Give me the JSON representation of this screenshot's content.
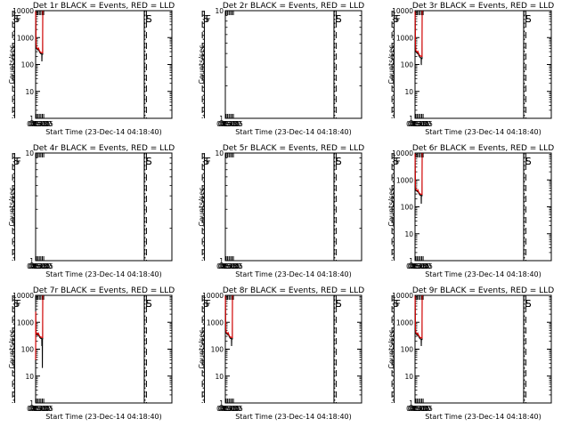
{
  "colors": {
    "background": "#ffffff",
    "axes": "#000000",
    "events": "#000000",
    "lld": "#e00000"
  },
  "chart_data": [
    {
      "type": "line",
      "title": "Det 1r BLACK = Events, RED = LLD",
      "xlabel": "Start Time (23-Dec-14 04:18:40)",
      "ylabel": "Counts/sec",
      "xlim": [
        "04:21",
        "03:55"
      ],
      "xticks": [
        "04:30",
        "04:45",
        "05:00",
        "05:15",
        "05:30",
        "05:45"
      ],
      "ylim": [
        1,
        10000
      ],
      "ylog": true,
      "yticks": [
        "1",
        "10",
        "100",
        "1000",
        "10000"
      ],
      "markers": [
        "S",
        "F",
        "E",
        "S"
      ],
      "series": [
        {
          "name": "Events",
          "color": "#000000",
          "x": [
            "04:21",
            "04:23",
            "04:25",
            "04:30",
            "04:40",
            "04:45",
            "04:50",
            "04:55",
            "05:00",
            "05:05",
            "05:10",
            "05:15",
            "05:20",
            "05:25",
            "05:26",
            "05:27",
            "05:30",
            "05:33",
            "05:34",
            "05:35",
            "05:36"
          ],
          "y": [
            9000,
            3000,
            600,
            400,
            360,
            350,
            380,
            340,
            300,
            280,
            260,
            250,
            250,
            240,
            130,
            240,
            240,
            240,
            230,
            9000,
            10000
          ]
        },
        {
          "name": "LLD",
          "color": "#e00000",
          "x": [
            "04:21",
            "04:23",
            "04:25",
            "04:30",
            "04:40",
            "04:45",
            "04:50",
            "04:55",
            "05:00",
            "05:05",
            "05:10",
            "05:15",
            "05:20",
            "05:25",
            "05:30",
            "05:33",
            "05:34",
            "05:35",
            "05:36"
          ],
          "y": [
            9500,
            3200,
            650,
            430,
            390,
            380,
            410,
            370,
            330,
            310,
            290,
            280,
            280,
            270,
            270,
            270,
            260,
            9500,
            10000
          ]
        }
      ]
    },
    {
      "type": "line",
      "title": "Det 2r BLACK = Events, RED = LLD",
      "xlabel": "Start Time (23-Dec-14 04:18:40)",
      "ylabel": "Counts/sec",
      "xlim": [
        "04:21",
        "03:55"
      ],
      "xticks": [
        "04:30",
        "04:45",
        "05:00",
        "05:15",
        "05:30",
        "05:45"
      ],
      "ylim": [
        1,
        10
      ],
      "ylog": true,
      "yticks": [
        "1",
        "10"
      ],
      "markers": [
        "S",
        "F",
        "E",
        "S"
      ],
      "series": []
    },
    {
      "type": "line",
      "title": "Det 3r BLACK = Events, RED = LLD",
      "xlabel": "Start Time (23-Dec-14 04:18:40)",
      "ylabel": "Counts/sec",
      "xlim": [
        "04:21",
        "03:55"
      ],
      "xticks": [
        "04:30",
        "04:45",
        "05:00",
        "05:15",
        "05:30",
        "05:45"
      ],
      "ylim": [
        1,
        10000
      ],
      "ylog": true,
      "yticks": [
        "1",
        "10",
        "100",
        "1000",
        "10000"
      ],
      "markers": [
        "S",
        "F",
        "E",
        "S"
      ],
      "series": [
        {
          "name": "Events",
          "color": "#000000",
          "x": [
            "04:21",
            "04:23",
            "04:25",
            "04:30",
            "04:40",
            "04:45",
            "04:50",
            "04:55",
            "05:00",
            "05:05",
            "05:10",
            "05:15",
            "05:20",
            "05:25",
            "05:26",
            "05:27",
            "05:30",
            "05:33",
            "05:34",
            "05:35",
            "05:36"
          ],
          "y": [
            9000,
            3000,
            600,
            300,
            270,
            260,
            280,
            250,
            220,
            200,
            190,
            180,
            180,
            170,
            95,
            170,
            170,
            170,
            160,
            9000,
            10000
          ]
        },
        {
          "name": "LLD",
          "color": "#e00000",
          "x": [
            "04:21",
            "04:23",
            "04:25",
            "04:30",
            "04:40",
            "04:45",
            "04:50",
            "04:55",
            "05:00",
            "05:05",
            "05:10",
            "05:15",
            "05:20",
            "05:25",
            "05:30",
            "05:33",
            "05:34",
            "05:35",
            "05:36"
          ],
          "y": [
            9500,
            3200,
            650,
            330,
            300,
            290,
            310,
            280,
            250,
            230,
            220,
            210,
            210,
            200,
            200,
            200,
            190,
            9500,
            10000
          ]
        }
      ]
    },
    {
      "type": "line",
      "title": "Det 4r BLACK = Events, RED = LLD",
      "xlabel": "Start Time (23-Dec-14 04:18:40)",
      "ylabel": "Counts/sec",
      "xlim": [
        "04:21",
        "03:55"
      ],
      "xticks": [
        "04:30",
        "04:45",
        "05:00",
        "05:15",
        "05:30",
        "05:45"
      ],
      "ylim": [
        1,
        10
      ],
      "ylog": true,
      "yticks": [
        "1",
        "10"
      ],
      "markers": [
        "S",
        "F",
        "E",
        "S"
      ],
      "series": []
    },
    {
      "type": "line",
      "title": "Det 5r BLACK = Events, RED = LLD",
      "xlabel": "Start Time (23-Dec-14 04:18:40)",
      "ylabel": "Counts/sec",
      "xlim": [
        "04:21",
        "03:55"
      ],
      "xticks": [
        "04:30",
        "04:45",
        "05:00",
        "05:15",
        "05:30",
        "05:45"
      ],
      "ylim": [
        1,
        10
      ],
      "ylog": true,
      "yticks": [
        "1",
        "10"
      ],
      "markers": [
        "S",
        "F",
        "E",
        "S"
      ],
      "series": []
    },
    {
      "type": "line",
      "title": "Det 6r BLACK = Events, RED = LLD",
      "xlabel": "Start Time (23-Dec-14 04:18:40)",
      "ylabel": "Counts/sec",
      "xlim": [
        "04:21",
        "03:55"
      ],
      "xticks": [
        "04:30",
        "04:45",
        "05:00",
        "05:15",
        "05:30",
        "05:45"
      ],
      "ylim": [
        1,
        10000
      ],
      "ylog": true,
      "yticks": [
        "1",
        "10",
        "100",
        "1000",
        "10000"
      ],
      "markers": [
        "S",
        "F",
        "E",
        "S"
      ],
      "series": [
        {
          "name": "Events",
          "color": "#000000",
          "x": [
            "04:21",
            "04:23",
            "04:25",
            "04:30",
            "04:40",
            "04:45",
            "04:50",
            "04:55",
            "05:00",
            "05:05",
            "05:10",
            "05:15",
            "05:20",
            "05:25",
            "05:26",
            "05:27",
            "05:30",
            "05:33",
            "05:34",
            "05:35",
            "05:36"
          ],
          "y": [
            9000,
            2000,
            600,
            420,
            380,
            370,
            400,
            360,
            320,
            300,
            280,
            270,
            270,
            260,
            130,
            260,
            260,
            260,
            250,
            9000,
            10000
          ]
        },
        {
          "name": "LLD",
          "color": "#e00000",
          "x": [
            "04:21",
            "04:23",
            "04:25",
            "04:30",
            "04:40",
            "04:45",
            "04:50",
            "04:55",
            "05:00",
            "05:05",
            "05:10",
            "05:15",
            "05:20",
            "05:25",
            "05:30",
            "05:33",
            "05:34",
            "05:35",
            "05:36"
          ],
          "y": [
            9500,
            2200,
            650,
            450,
            410,
            400,
            430,
            390,
            350,
            330,
            310,
            300,
            300,
            290,
            290,
            290,
            280,
            9500,
            10000
          ]
        }
      ]
    },
    {
      "type": "line",
      "title": "Det 7r BLACK = Events, RED = LLD",
      "xlabel": "Start Time (23-Dec-14 04:18:40)",
      "ylabel": "Counts/sec",
      "xlim": [
        "04:21",
        "03:55"
      ],
      "xticks": [
        "04:30",
        "04:45",
        "05:00",
        "05:15",
        "05:30",
        "05:45"
      ],
      "ylim": [
        1,
        10000
      ],
      "ylog": true,
      "yticks": [
        "1",
        "10",
        "100",
        "1000",
        "10000"
      ],
      "markers": [
        "S",
        "F",
        "E",
        "S"
      ],
      "series": [
        {
          "name": "Events",
          "color": "#000000",
          "x": [
            "04:21",
            "04:22",
            "04:23",
            "04:25",
            "04:30",
            "04:40",
            "04:45",
            "04:50",
            "04:55",
            "05:00",
            "05:05",
            "05:10",
            "05:15",
            "05:20",
            "05:25",
            "05:26",
            "05:27",
            "05:30",
            "05:31",
            "05:32",
            "05:33",
            "05:34",
            "05:35",
            "05:36"
          ],
          "y": [
            30,
            2000,
            500,
            400,
            350,
            340,
            330,
            360,
            320,
            290,
            270,
            260,
            250,
            250,
            240,
            130,
            240,
            240,
            20,
            240,
            240,
            230,
            9000,
            10000
          ]
        },
        {
          "name": "LLD",
          "color": "#e00000",
          "x": [
            "04:21",
            "04:22",
            "04:23",
            "04:25",
            "04:30",
            "04:40",
            "04:45",
            "04:50",
            "04:55",
            "05:00",
            "05:05",
            "05:10",
            "05:15",
            "05:20",
            "05:25",
            "05:30",
            "05:33",
            "05:34",
            "05:35",
            "05:36"
          ],
          "y": [
            40,
            2500,
            550,
            430,
            380,
            370,
            360,
            390,
            350,
            320,
            300,
            290,
            280,
            280,
            270,
            270,
            270,
            260,
            9500,
            10000
          ]
        }
      ]
    },
    {
      "type": "line",
      "title": "Det 8r BLACK = Events, RED = LLD",
      "xlabel": "Start Time (23-Dec-14 04:18:40)",
      "ylabel": "Counts/sec",
      "xlim": [
        "04:21",
        "03:55"
      ],
      "xticks": [
        "04:30",
        "04:45",
        "05:00",
        "05:15",
        "05:30",
        "05:45"
      ],
      "ylim": [
        1,
        10000
      ],
      "ylog": true,
      "yticks": [
        "1",
        "10",
        "100",
        "1000",
        "10000"
      ],
      "markers": [
        "S",
        "F",
        "E",
        "S"
      ],
      "series": [
        {
          "name": "Events",
          "color": "#000000",
          "x": [
            "04:21",
            "04:23",
            "04:25",
            "04:30",
            "04:40",
            "04:45",
            "04:50",
            "04:55",
            "05:00",
            "05:05",
            "05:10",
            "05:15",
            "05:20",
            "05:25",
            "05:26",
            "05:27",
            "05:30",
            "05:33",
            "05:34",
            "05:35",
            "05:36"
          ],
          "y": [
            9000,
            2500,
            600,
            400,
            360,
            350,
            380,
            340,
            300,
            280,
            260,
            250,
            250,
            240,
            130,
            240,
            240,
            240,
            230,
            9000,
            10000
          ]
        },
        {
          "name": "LLD",
          "color": "#e00000",
          "x": [
            "04:21",
            "04:23",
            "04:25",
            "04:30",
            "04:40",
            "04:45",
            "04:50",
            "04:55",
            "05:00",
            "05:05",
            "05:10",
            "05:15",
            "05:20",
            "05:25",
            "05:30",
            "05:33",
            "05:34",
            "05:35",
            "05:36"
          ],
          "y": [
            9500,
            2700,
            650,
            430,
            390,
            380,
            410,
            370,
            330,
            310,
            290,
            280,
            280,
            270,
            270,
            270,
            260,
            9500,
            10000
          ]
        }
      ]
    },
    {
      "type": "line",
      "title": "Det 9r BLACK = Events, RED = LLD",
      "xlabel": "Start Time (23-Dec-14 04:18:40)",
      "ylabel": "Counts/sec",
      "xlim": [
        "04:21",
        "03:55"
      ],
      "xticks": [
        "04:30",
        "04:45",
        "05:00",
        "05:15",
        "05:30",
        "05:45"
      ],
      "ylim": [
        1,
        10000
      ],
      "ylog": true,
      "yticks": [
        "1",
        "10",
        "100",
        "1000",
        "10000"
      ],
      "markers": [
        "S",
        "F",
        "E",
        "S"
      ],
      "series": [
        {
          "name": "Events",
          "color": "#000000",
          "x": [
            "04:21",
            "04:23",
            "04:25",
            "04:30",
            "04:40",
            "04:45",
            "04:50",
            "04:55",
            "05:00",
            "05:05",
            "05:10",
            "05:15",
            "05:20",
            "05:25",
            "05:26",
            "05:27",
            "05:30",
            "05:33",
            "05:34",
            "05:35",
            "05:36"
          ],
          "y": [
            9000,
            3000,
            600,
            380,
            340,
            330,
            360,
            320,
            290,
            270,
            250,
            240,
            240,
            230,
            130,
            230,
            230,
            230,
            220,
            9000,
            10000
          ]
        },
        {
          "name": "LLD",
          "color": "#e00000",
          "x": [
            "04:21",
            "04:23",
            "04:25",
            "04:30",
            "04:40",
            "04:45",
            "04:50",
            "04:55",
            "05:00",
            "05:05",
            "05:10",
            "05:15",
            "05:20",
            "05:25",
            "05:30",
            "05:33",
            "05:34",
            "05:35",
            "05:36"
          ],
          "y": [
            9500,
            3200,
            650,
            410,
            370,
            360,
            390,
            350,
            320,
            300,
            280,
            270,
            270,
            260,
            260,
            260,
            250,
            9500,
            10000
          ]
        }
      ]
    }
  ]
}
